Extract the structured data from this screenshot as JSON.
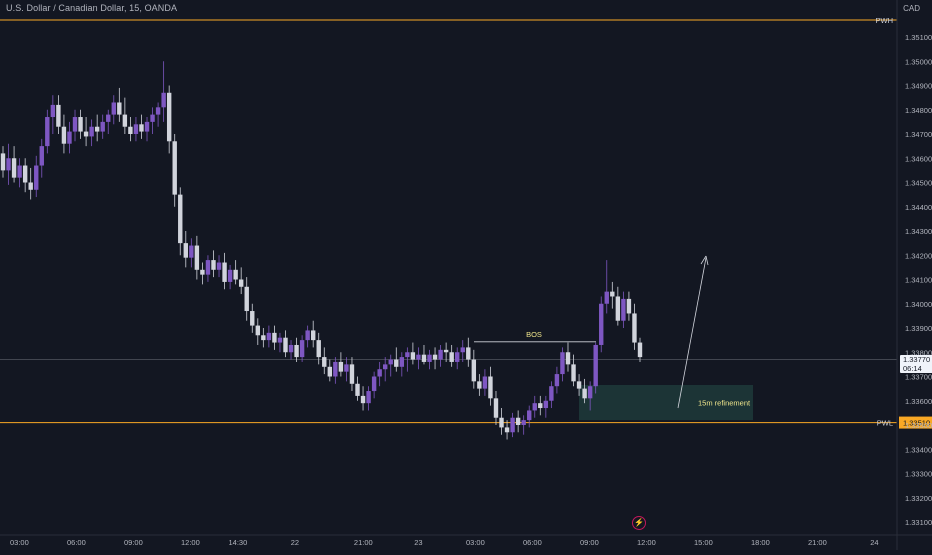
{
  "header": {
    "symbol_title": "U.S. Dollar / Canadian Dollar, 15, OANDA",
    "currency": "CAD"
  },
  "price_badge": {
    "price": "1.33770",
    "countdown": "06:14"
  },
  "colors": {
    "background": "#131722",
    "bull_candle": "#7e57c2",
    "bear_candle": "#d1d4dc",
    "level_line": "#f9a825",
    "zone": "#1e3a3a",
    "annotation_text": "#f0e68c"
  },
  "chart_data": {
    "type": "candlestick",
    "y_axis": {
      "range": [
        1.3305,
        1.352
      ],
      "ticks": [
        "1.35100",
        "1.35000",
        "1.34900",
        "1.34800",
        "1.34700",
        "1.34600",
        "1.34500",
        "1.34400",
        "1.34300",
        "1.34200",
        "1.34100",
        "1.34000",
        "1.33900",
        "1.33800",
        "1.33700",
        "1.33600",
        "1.33500",
        "1.33400",
        "1.33300",
        "1.33200",
        "1.33100"
      ]
    },
    "x_axis": {
      "ticks": [
        {
          "label": "03:00",
          "t": 0.6
        },
        {
          "label": "06:00",
          "t": 3.6
        },
        {
          "label": "09:00",
          "t": 6.6
        },
        {
          "label": "12:00",
          "t": 9.6
        },
        {
          "label": "14:30",
          "t": 12.1
        },
        {
          "label": "22",
          "t": 15.1
        },
        {
          "label": "21:00",
          "t": 18.7
        },
        {
          "label": "23",
          "t": 21.6
        },
        {
          "label": "03:00",
          "t": 24.6
        },
        {
          "label": "06:00",
          "t": 27.6
        },
        {
          "label": "09:00",
          "t": 30.6
        },
        {
          "label": "12:00",
          "t": 33.6
        },
        {
          "label": "15:00",
          "t": 36.6
        },
        {
          "label": "18:00",
          "t": 39.6
        },
        {
          "label": "21:00",
          "t": 42.6
        },
        {
          "label": "24",
          "t": 45.6
        }
      ]
    },
    "levels": [
      {
        "label": "PWH",
        "price": 1.3517
      },
      {
        "label": "PWL",
        "price": 1.3351,
        "badge": "1.33510"
      }
    ],
    "current_price": 1.3377,
    "annotations": {
      "bos_label": "BOS",
      "bos_price": 1.33843,
      "zone_label": "15m refinement",
      "zone_high": 1.33665,
      "zone_low": 1.3352
    },
    "candles": [
      [
        1.3462,
        1.3465,
        1.3452,
        1.3455
      ],
      [
        1.3455,
        1.3466,
        1.3449,
        1.346
      ],
      [
        1.346,
        1.3465,
        1.345,
        1.3452
      ],
      [
        1.3452,
        1.346,
        1.3448,
        1.3457
      ],
      [
        1.3457,
        1.346,
        1.3446,
        1.345
      ],
      [
        1.345,
        1.3456,
        1.3443,
        1.3447
      ],
      [
        1.3447,
        1.3461,
        1.3444,
        1.3457
      ],
      [
        1.3457,
        1.3468,
        1.3452,
        1.3465
      ],
      [
        1.3465,
        1.348,
        1.3462,
        1.3477
      ],
      [
        1.3477,
        1.3486,
        1.347,
        1.3482
      ],
      [
        1.3482,
        1.3486,
        1.347,
        1.3473
      ],
      [
        1.3473,
        1.3478,
        1.3462,
        1.3466
      ],
      [
        1.3466,
        1.3475,
        1.3462,
        1.3471
      ],
      [
        1.3471,
        1.348,
        1.3467,
        1.3477
      ],
      [
        1.3477,
        1.348,
        1.3468,
        1.3471
      ],
      [
        1.3471,
        1.3477,
        1.3465,
        1.3469
      ],
      [
        1.3469,
        1.3476,
        1.3465,
        1.3473
      ],
      [
        1.3473,
        1.3478,
        1.3467,
        1.3471
      ],
      [
        1.3471,
        1.3478,
        1.3468,
        1.3475
      ],
      [
        1.3475,
        1.348,
        1.347,
        1.3478
      ],
      [
        1.3478,
        1.3486,
        1.3474,
        1.3483
      ],
      [
        1.3483,
        1.3489,
        1.3475,
        1.3478
      ],
      [
        1.3478,
        1.3485,
        1.347,
        1.3473
      ],
      [
        1.3473,
        1.3477,
        1.3467,
        1.347
      ],
      [
        1.347,
        1.3477,
        1.3467,
        1.3474
      ],
      [
        1.3474,
        1.3478,
        1.3468,
        1.3471
      ],
      [
        1.3471,
        1.3477,
        1.3467,
        1.3475
      ],
      [
        1.3475,
        1.3481,
        1.347,
        1.3478
      ],
      [
        1.3478,
        1.3483,
        1.3473,
        1.3481
      ],
      [
        1.3481,
        1.35,
        1.3475,
        1.3487
      ],
      [
        1.3487,
        1.349,
        1.3462,
        1.3467
      ],
      [
        1.3467,
        1.347,
        1.344,
        1.3445
      ],
      [
        1.3445,
        1.3448,
        1.342,
        1.3425
      ],
      [
        1.3425,
        1.343,
        1.3415,
        1.3419
      ],
      [
        1.3419,
        1.3427,
        1.3415,
        1.3424
      ],
      [
        1.3424,
        1.3428,
        1.341,
        1.3414
      ],
      [
        1.3414,
        1.3417,
        1.3408,
        1.3412
      ],
      [
        1.3412,
        1.342,
        1.3409,
        1.3418
      ],
      [
        1.3418,
        1.3422,
        1.3411,
        1.3414
      ],
      [
        1.3414,
        1.342,
        1.3411,
        1.3417
      ],
      [
        1.3417,
        1.3421,
        1.3406,
        1.3409
      ],
      [
        1.3409,
        1.3416,
        1.3406,
        1.3414
      ],
      [
        1.3414,
        1.3418,
        1.3408,
        1.341
      ],
      [
        1.341,
        1.3415,
        1.3404,
        1.3407
      ],
      [
        1.3407,
        1.3411,
        1.3393,
        1.3397
      ],
      [
        1.3397,
        1.34,
        1.3388,
        1.3391
      ],
      [
        1.3391,
        1.3394,
        1.3383,
        1.3387
      ],
      [
        1.3387,
        1.339,
        1.3382,
        1.3385
      ],
      [
        1.3385,
        1.3391,
        1.3382,
        1.3388
      ],
      [
        1.3388,
        1.3391,
        1.3381,
        1.3384
      ],
      [
        1.3384,
        1.3388,
        1.338,
        1.3386
      ],
      [
        1.3386,
        1.3389,
        1.3378,
        1.338
      ],
      [
        1.338,
        1.3385,
        1.3377,
        1.3383
      ],
      [
        1.3383,
        1.3386,
        1.3376,
        1.3378
      ],
      [
        1.3378,
        1.3387,
        1.3376,
        1.3385
      ],
      [
        1.3385,
        1.3391,
        1.3382,
        1.3389
      ],
      [
        1.3389,
        1.3393,
        1.3382,
        1.3385
      ],
      [
        1.3385,
        1.3388,
        1.3375,
        1.3378
      ],
      [
        1.3378,
        1.3382,
        1.3371,
        1.3374
      ],
      [
        1.3374,
        1.3377,
        1.3368,
        1.337
      ],
      [
        1.337,
        1.3378,
        1.3367,
        1.3376
      ],
      [
        1.3376,
        1.338,
        1.337,
        1.3372
      ],
      [
        1.3372,
        1.3378,
        1.3368,
        1.3375
      ],
      [
        1.3375,
        1.3378,
        1.3364,
        1.3367
      ],
      [
        1.3367,
        1.337,
        1.336,
        1.3362
      ],
      [
        1.3362,
        1.3366,
        1.3356,
        1.3359
      ],
      [
        1.3359,
        1.3366,
        1.3356,
        1.3364
      ],
      [
        1.3364,
        1.3372,
        1.3361,
        1.337
      ],
      [
        1.337,
        1.3376,
        1.3366,
        1.3373
      ],
      [
        1.3373,
        1.3378,
        1.3368,
        1.3375
      ],
      [
        1.3375,
        1.3379,
        1.337,
        1.3377
      ],
      [
        1.3377,
        1.3382,
        1.3372,
        1.3374
      ],
      [
        1.3374,
        1.338,
        1.337,
        1.3378
      ],
      [
        1.3378,
        1.3382,
        1.3372,
        1.338
      ],
      [
        1.338,
        1.3384,
        1.3375,
        1.3377
      ],
      [
        1.3377,
        1.3382,
        1.3373,
        1.3379
      ],
      [
        1.3379,
        1.3383,
        1.3375,
        1.3376
      ],
      [
        1.3376,
        1.3381,
        1.3373,
        1.3379
      ],
      [
        1.3379,
        1.3382,
        1.3373,
        1.3377
      ],
      [
        1.3377,
        1.3383,
        1.3374,
        1.3381
      ],
      [
        1.3381,
        1.3384,
        1.3376,
        1.338
      ],
      [
        1.338,
        1.3383,
        1.3374,
        1.3376
      ],
      [
        1.3376,
        1.3382,
        1.3373,
        1.338
      ],
      [
        1.338,
        1.3385,
        1.3376,
        1.3382
      ],
      [
        1.3382,
        1.3386,
        1.3374,
        1.3377
      ],
      [
        1.3377,
        1.3381,
        1.3365,
        1.3368
      ],
      [
        1.3368,
        1.3371,
        1.3362,
        1.3365
      ],
      [
        1.3365,
        1.3373,
        1.3362,
        1.337
      ],
      [
        1.337,
        1.3374,
        1.3358,
        1.3361
      ],
      [
        1.3361,
        1.3364,
        1.335,
        1.3353
      ],
      [
        1.3353,
        1.3357,
        1.3346,
        1.3349
      ],
      [
        1.3349,
        1.3352,
        1.3344,
        1.3347
      ],
      [
        1.3347,
        1.3355,
        1.3345,
        1.3353
      ],
      [
        1.3353,
        1.3356,
        1.3347,
        1.335
      ],
      [
        1.335,
        1.3354,
        1.3346,
        1.3352
      ],
      [
        1.3352,
        1.3358,
        1.3349,
        1.3356
      ],
      [
        1.3356,
        1.3362,
        1.3353,
        1.3359
      ],
      [
        1.3359,
        1.3362,
        1.3354,
        1.3357
      ],
      [
        1.3357,
        1.3362,
        1.3353,
        1.336
      ],
      [
        1.336,
        1.3368,
        1.3357,
        1.3366
      ],
      [
        1.3366,
        1.3374,
        1.3363,
        1.3371
      ],
      [
        1.3371,
        1.3382,
        1.3368,
        1.338
      ],
      [
        1.338,
        1.3384,
        1.3372,
        1.3375
      ],
      [
        1.3375,
        1.3379,
        1.3366,
        1.3368
      ],
      [
        1.3368,
        1.3371,
        1.3362,
        1.3365
      ],
      [
        1.3365,
        1.3369,
        1.3359,
        1.3361
      ],
      [
        1.3361,
        1.3368,
        1.3356,
        1.3366
      ],
      [
        1.3366,
        1.3384,
        1.3363,
        1.3383
      ],
      [
        1.3383,
        1.3403,
        1.338,
        1.34
      ],
      [
        1.34,
        1.3418,
        1.3396,
        1.3405
      ],
      [
        1.3405,
        1.3409,
        1.3398,
        1.3403
      ],
      [
        1.3403,
        1.3407,
        1.3391,
        1.3393
      ],
      [
        1.3393,
        1.3405,
        1.339,
        1.3402
      ],
      [
        1.3402,
        1.3405,
        1.3393,
        1.3396
      ],
      [
        1.3396,
        1.34,
        1.3381,
        1.3384
      ],
      [
        1.3384,
        1.3386,
        1.3376,
        1.3378
      ]
    ]
  }
}
